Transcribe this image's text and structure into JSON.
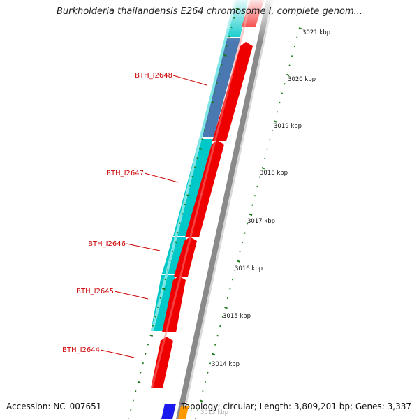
{
  "title": "Burkholderia thailandensis E264 chromosome I, complete genom...",
  "footer": {
    "accession": "Accession: NC_007651",
    "topology": "Topology: circular; Length: 3,809,201 bp; Genes: 3,337"
  },
  "colors": {
    "forward_strand": "#00c8c8",
    "forward_highlight": "#4a78b0",
    "reverse_strand": "#ee0000",
    "backbone": "#888888",
    "ticks": "#1a7a1a",
    "labels": "#cc0000"
  },
  "genes": [
    {
      "name": "BTH_I2648"
    },
    {
      "name": "BTH_I2647"
    },
    {
      "name": "BTH_I2646"
    },
    {
      "name": "BTH_I2645"
    },
    {
      "name": "BTH_I2644"
    }
  ],
  "ticks": [
    {
      "label": "3021 kbp"
    },
    {
      "label": "3020 kbp"
    },
    {
      "label": "3019 kbp"
    },
    {
      "label": "3018 kbp"
    },
    {
      "label": "3017 kbp"
    },
    {
      "label": "3016 kbp"
    },
    {
      "label": "3015 kbp"
    },
    {
      "label": "3014 kbp"
    },
    {
      "label": "3013 kbp"
    }
  ]
}
